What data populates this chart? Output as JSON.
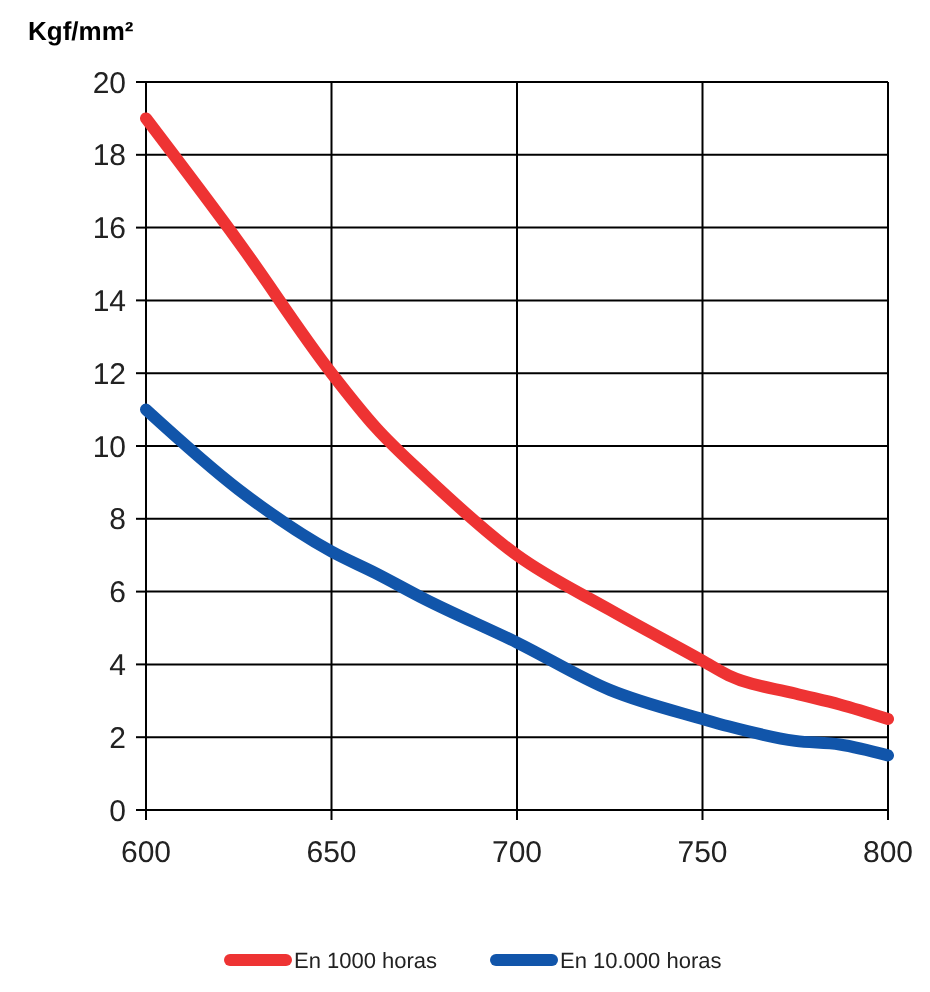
{
  "chart_data": {
    "type": "line",
    "ylabel": "Kgf/mm²",
    "xlim": [
      600,
      800
    ],
    "xticks": [
      600,
      650,
      700,
      750,
      800
    ],
    "ylim": [
      0,
      20
    ],
    "yticks": [
      0,
      2,
      4,
      6,
      8,
      10,
      12,
      14,
      16,
      18,
      20
    ],
    "grid": true,
    "legend": "bottom",
    "marker": "none",
    "line_style": "solid",
    "x": [
      600,
      625,
      650,
      662,
      675,
      700,
      725,
      750,
      757,
      775,
      787,
      800
    ],
    "series": [
      {
        "name": "En 1000 horas",
        "color": "#ee3333",
        "values": [
          19,
          15.6,
          12,
          10.5,
          9.2,
          7,
          5.5,
          4.1,
          3.7,
          3.2,
          2.9,
          2.5
        ]
      },
      {
        "name": "En 10.000 horas",
        "color": "#1155aa",
        "values": [
          11,
          8.8,
          7.1,
          6.5,
          5.8,
          4.6,
          3.3,
          2.5,
          2.3,
          1.9,
          1.8,
          1.5
        ]
      }
    ]
  }
}
